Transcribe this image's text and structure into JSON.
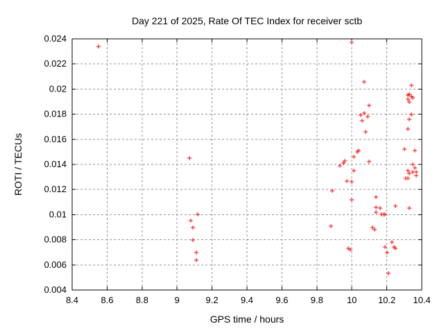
{
  "window": {
    "background": "#ffffff"
  },
  "chart_data": {
    "type": "scatter",
    "title": "Day 221 of 2025, Rate Of TEC Index for receiver sctb",
    "xlabel": "GPS time / hours",
    "ylabel": "ROTI / TECUs",
    "xlim": [
      8.4,
      10.4
    ],
    "ylim": [
      0.004,
      0.024
    ],
    "grid": true,
    "legend": "none",
    "marker": "plus",
    "colors": {
      "marker": "#ff0000",
      "grid": "#909090",
      "axis": "#000000",
      "background": "#ffffff",
      "text": "#000000"
    },
    "xticks": [
      {
        "v": 8.4,
        "label": "8.4"
      },
      {
        "v": 8.6,
        "label": "8.6"
      },
      {
        "v": 8.8,
        "label": "8.8"
      },
      {
        "v": 9.0,
        "label": "9"
      },
      {
        "v": 9.2,
        "label": "9.2"
      },
      {
        "v": 9.4,
        "label": "9.4"
      },
      {
        "v": 9.6,
        "label": "9.6"
      },
      {
        "v": 9.8,
        "label": "9.8"
      },
      {
        "v": 10.0,
        "label": "10"
      },
      {
        "v": 10.2,
        "label": "10.2"
      },
      {
        "v": 10.4,
        "label": "10.4"
      }
    ],
    "yticks": [
      {
        "v": 0.004,
        "label": "0.004"
      },
      {
        "v": 0.006,
        "label": "0.006"
      },
      {
        "v": 0.008,
        "label": "0.008"
      },
      {
        "v": 0.01,
        "label": "0.01"
      },
      {
        "v": 0.012,
        "label": "0.012"
      },
      {
        "v": 0.014,
        "label": "0.014"
      },
      {
        "v": 0.016,
        "label": "0.016"
      },
      {
        "v": 0.018,
        "label": "0.018"
      },
      {
        "v": 0.02,
        "label": "0.02"
      },
      {
        "v": 0.022,
        "label": "0.022"
      },
      {
        "v": 0.024,
        "label": "0.024"
      }
    ],
    "points": [
      [
        8.55,
        0.0234
      ],
      [
        9.07,
        0.0145
      ],
      [
        9.12,
        0.01
      ],
      [
        9.08,
        0.0095
      ],
      [
        9.09,
        0.009
      ],
      [
        9.09,
        0.008
      ],
      [
        9.11,
        0.007
      ],
      [
        9.11,
        0.0064
      ],
      [
        9.88,
        0.0091
      ],
      [
        9.89,
        0.0119
      ],
      [
        9.93,
        0.0139
      ],
      [
        9.95,
        0.0141
      ],
      [
        9.96,
        0.0143
      ],
      [
        9.97,
        0.0127
      ],
      [
        9.98,
        0.0073
      ],
      [
        9.99,
        0.0072
      ],
      [
        10.0,
        0.0237
      ],
      [
        10.0,
        0.0126
      ],
      [
        10.0,
        0.0112
      ],
      [
        10.01,
        0.0135
      ],
      [
        10.01,
        0.0146
      ],
      [
        10.03,
        0.015
      ],
      [
        10.04,
        0.0151
      ],
      [
        10.05,
        0.0179
      ],
      [
        10.06,
        0.0175
      ],
      [
        10.07,
        0.0206
      ],
      [
        10.07,
        0.0181
      ],
      [
        10.08,
        0.0166
      ],
      [
        10.09,
        0.0178
      ],
      [
        10.1,
        0.0187
      ],
      [
        10.1,
        0.0142
      ],
      [
        10.12,
        0.009
      ],
      [
        10.13,
        0.0088
      ],
      [
        10.14,
        0.0114
      ],
      [
        10.14,
        0.0106
      ],
      [
        10.16,
        0.0105
      ],
      [
        10.14,
        0.0102
      ],
      [
        10.17,
        0.01
      ],
      [
        10.18,
        0.01
      ],
      [
        10.19,
        0.01
      ],
      [
        10.19,
        0.0074
      ],
      [
        10.2,
        0.007
      ],
      [
        10.21,
        0.0053
      ],
      [
        10.23,
        0.0078
      ],
      [
        10.24,
        0.0074
      ],
      [
        10.25,
        0.0073
      ],
      [
        10.25,
        0.0107
      ],
      [
        10.3,
        0.0152
      ],
      [
        10.36,
        0.0151
      ],
      [
        10.34,
        0.0203
      ],
      [
        10.32,
        0.0195
      ],
      [
        10.33,
        0.0196
      ],
      [
        10.34,
        0.0194
      ],
      [
        10.35,
        0.0193
      ],
      [
        10.32,
        0.0192
      ],
      [
        10.33,
        0.019
      ],
      [
        10.34,
        0.018
      ],
      [
        10.33,
        0.0176
      ],
      [
        10.32,
        0.0168
      ],
      [
        10.35,
        0.014
      ],
      [
        10.36,
        0.0137
      ],
      [
        10.32,
        0.0135
      ],
      [
        10.35,
        0.0134
      ],
      [
        10.37,
        0.0134
      ],
      [
        10.33,
        0.0133
      ],
      [
        10.37,
        0.0131
      ],
      [
        10.31,
        0.0129
      ],
      [
        10.32,
        0.0129
      ],
      [
        10.33,
        0.0105
      ]
    ]
  }
}
